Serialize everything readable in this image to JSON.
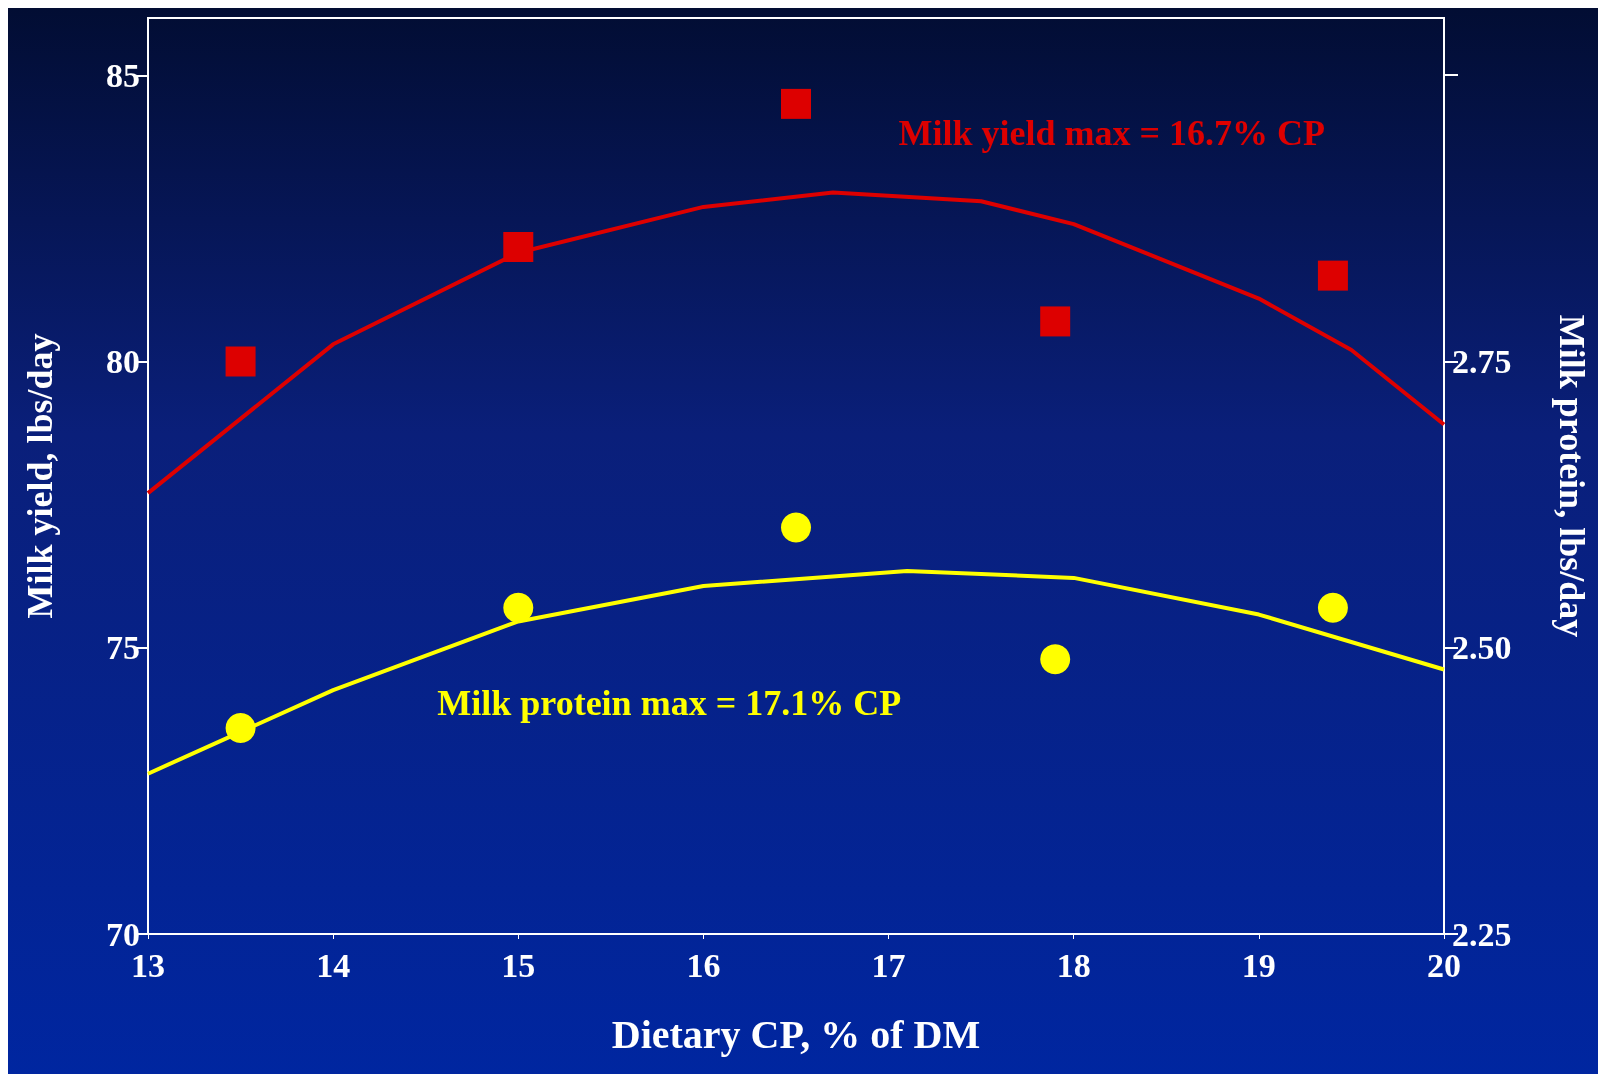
{
  "chart_data": {
    "type": "scatter",
    "xlabel": "Dietary CP, % of DM",
    "ylabel": "Milk yield, lbs/day",
    "y2label": "Milk protein, lbs/day",
    "xlim": [
      13,
      20
    ],
    "xticks": [
      13,
      14,
      15,
      16,
      17,
      18,
      19,
      20
    ],
    "ylim": [
      70,
      86
    ],
    "yticks": [
      70,
      75,
      80,
      85
    ],
    "y2lim": [
      2.25,
      3.05
    ],
    "y2ticks": [
      2.25,
      {
        "value": 2.5,
        "label": "2.50"
      },
      {
        "value": 2.75,
        "label": "2.75"
      },
      {
        "value": 3.0,
        "label": null
      }
    ],
    "grid": false,
    "series": [
      {
        "marker": "square",
        "color": "#dd0000",
        "x": [
          13.5,
          15,
          16.5,
          17.9,
          19.4
        ],
        "values": [
          80.0,
          82.0,
          84.5,
          80.7,
          81.5
        ]
      },
      {
        "type": "line",
        "marker": "none",
        "color": "#dd0000",
        "x": [
          13,
          14,
          15,
          16,
          16.7,
          17.5,
          18,
          19,
          19.5,
          20
        ],
        "values": [
          77.7,
          80.3,
          81.9,
          82.7,
          82.95,
          82.8,
          82.4,
          81.1,
          80.2,
          78.9
        ]
      },
      {
        "marker": "circle",
        "axis": "y2",
        "color": "#ffff00",
        "x": [
          13.5,
          15,
          16.5,
          17.9,
          19.4
        ],
        "values": [
          2.43,
          2.535,
          2.605,
          2.49,
          2.535
        ]
      },
      {
        "type": "line",
        "marker": "none",
        "axis": "y2",
        "color": "#ffff00",
        "x": [
          13,
          14,
          15,
          16,
          17.1,
          18,
          19,
          20
        ],
        "values": [
          2.39,
          2.463,
          2.523,
          2.554,
          2.567,
          2.561,
          2.529,
          2.481
        ]
      }
    ],
    "annotations": [
      "Milk yield max = 16.7% CP",
      "Milk protein max = 17.1% CP"
    ]
  }
}
